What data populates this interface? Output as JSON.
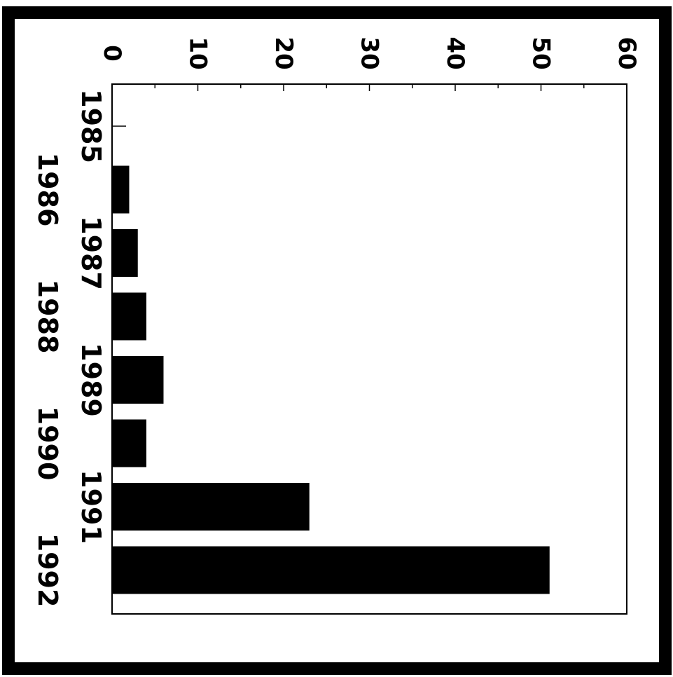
{
  "chart_data": {
    "type": "bar",
    "orientation": "rotated-90-clockwise",
    "categories": [
      "1985",
      "1986",
      "1987",
      "1988",
      "1989",
      "1990",
      "1991",
      "1992"
    ],
    "values": [
      0,
      2,
      3,
      4,
      6,
      4,
      23,
      51
    ],
    "ylim": [
      0,
      60
    ],
    "yticks": [
      "0",
      "10",
      "20",
      "30",
      "40",
      "50",
      "60"
    ],
    "title": "",
    "xlabel": "",
    "ylabel": "",
    "grid": false,
    "legend": "none",
    "bar_color": "#000000",
    "frame_color": "#000000"
  }
}
